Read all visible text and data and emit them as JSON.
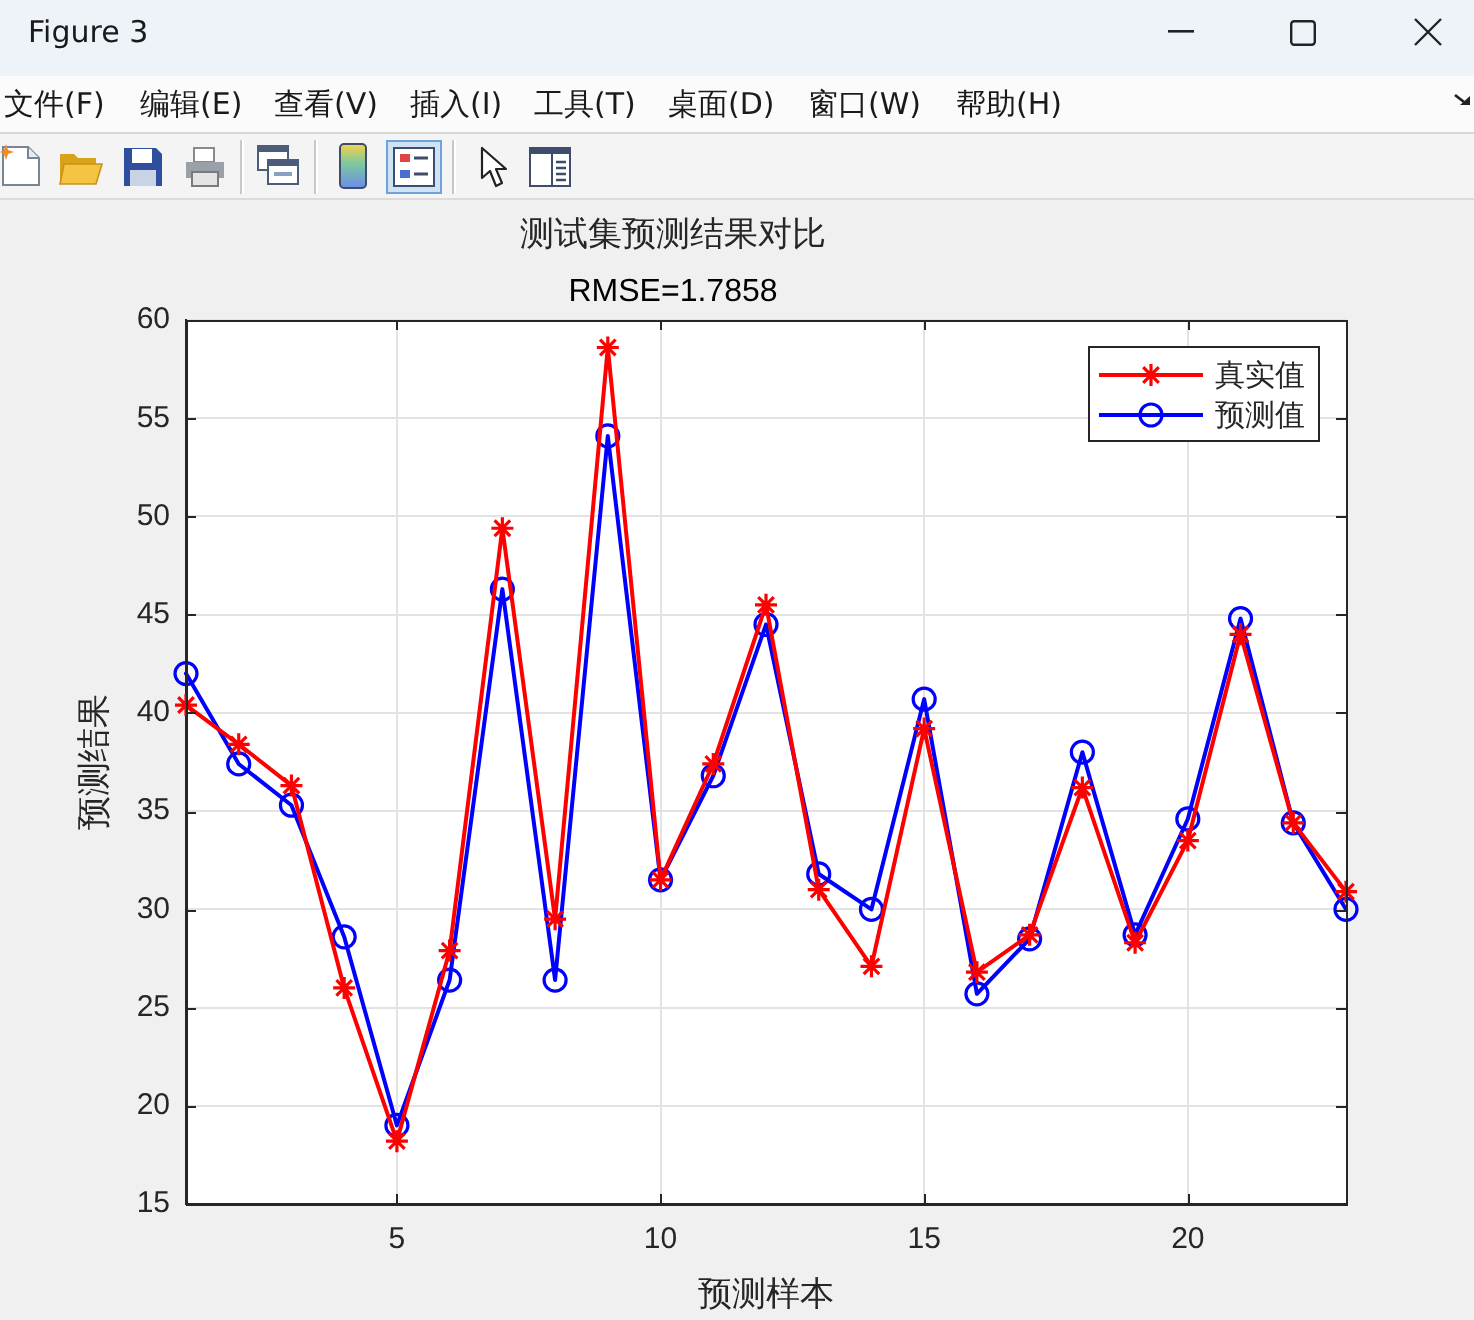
{
  "chart_data": {
    "type": "line",
    "title": "测试集预测结果对比",
    "subtitle": "RMSE=1.7858",
    "xlabel": "预测样本",
    "ylabel": "预测结果",
    "x": [
      1,
      2,
      3,
      4,
      5,
      6,
      7,
      8,
      9,
      10,
      11,
      12,
      13,
      14,
      15,
      16,
      17,
      18,
      19,
      20,
      21,
      22,
      23
    ],
    "series": [
      {
        "name": "真实值",
        "color": "#ff0000",
        "marker": "cross",
        "values": [
          40.4,
          38.4,
          36.3,
          26.0,
          18.2,
          27.9,
          49.4,
          29.5,
          58.6,
          31.5,
          37.4,
          45.5,
          31.0,
          27.1,
          39.2,
          26.8,
          28.7,
          36.2,
          28.3,
          33.5,
          44.0,
          34.4,
          30.9
        ]
      },
      {
        "name": "预测值",
        "color": "#0000ff",
        "marker": "circle",
        "values": [
          42.0,
          37.4,
          35.3,
          28.6,
          19.0,
          26.4,
          46.3,
          26.4,
          54.1,
          31.5,
          36.8,
          44.5,
          31.8,
          30.0,
          40.7,
          25.7,
          28.5,
          38.0,
          28.7,
          34.6,
          44.8,
          34.4,
          30.0
        ]
      }
    ],
    "xlim": [
      1,
      23
    ],
    "xticks": [
      5,
      10,
      15,
      20
    ],
    "ylim": [
      15,
      60
    ],
    "yticks": [
      15,
      20,
      25,
      30,
      35,
      40,
      45,
      50,
      55,
      60
    ],
    "grid": true,
    "legend": "top right",
    "line_style": "solid",
    "annotations": [
      "Figure 3",
      "文件(F)",
      "编辑(E)",
      "查看(V)",
      "插入(I)",
      "工具(T)",
      "桌面(D)",
      "窗口(W)",
      "帮助(H)"
    ]
  }
}
